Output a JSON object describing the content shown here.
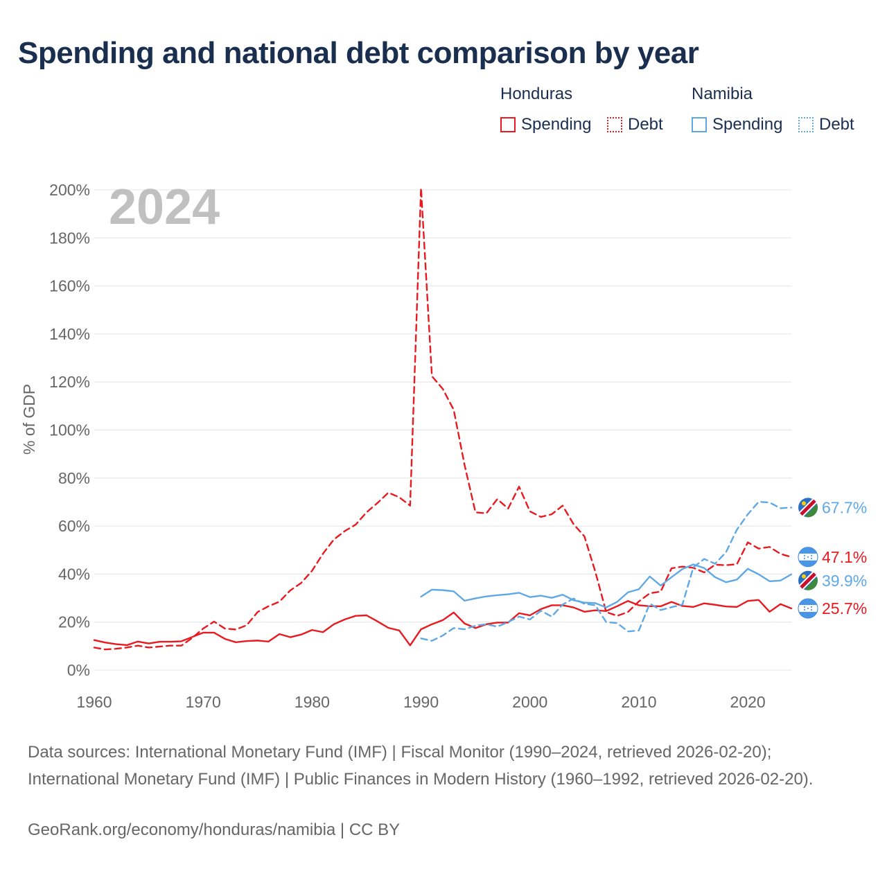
{
  "title": "Spending and national debt comparison by year",
  "legend": {
    "groups": [
      {
        "country": "Honduras",
        "color": "#e8191f",
        "items": [
          {
            "label": "Spending",
            "style": "solid"
          },
          {
            "label": "Debt",
            "style": "dotted"
          }
        ]
      },
      {
        "country": "Namibia",
        "color": "#5fa8e6",
        "items": [
          {
            "label": "Spending",
            "style": "solid"
          },
          {
            "label": "Debt",
            "style": "dotted"
          }
        ]
      }
    ]
  },
  "year_watermark": "2024",
  "source_text": "Data sources: International Monetary Fund (IMF) | Fiscal Monitor (1990–2024, retrieved 2026-02-20); International Monetary Fund (IMF) | Public Finances in Modern History (1960–1992, retrieved 2026-02-20).",
  "credit_text": "GeoRank.org/economy/honduras/namibia | CC BY",
  "chart_data": {
    "type": "line",
    "title": "Spending and national debt comparison by year",
    "xlabel": "",
    "ylabel": "% of GDP",
    "xlim": [
      1960,
      2024
    ],
    "ylim": [
      0,
      200
    ],
    "x_ticks": [
      1960,
      1970,
      1980,
      1990,
      2000,
      2010,
      2020
    ],
    "y_ticks": [
      0,
      20,
      40,
      60,
      80,
      100,
      120,
      140,
      160,
      180,
      200
    ],
    "y_tick_labels": [
      "0%",
      "20%",
      "40%",
      "60%",
      "80%",
      "100%",
      "120%",
      "140%",
      "160%",
      "180%",
      "200%"
    ],
    "grid": true,
    "series": [
      {
        "name": "Honduras Debt",
        "country": "Honduras",
        "measure": "Debt",
        "color": "#e8191f",
        "dash": "dashed",
        "start_year": 1960,
        "end_label": "47.1%",
        "flag": "honduras",
        "values": [
          9.4,
          8.6,
          8.9,
          9.4,
          10.2,
          9.4,
          9.8,
          10.2,
          10.2,
          13.4,
          17.3,
          20.2,
          17.3,
          16.9,
          18.7,
          24.2,
          26.6,
          28.5,
          33.2,
          36.3,
          41.4,
          48.5,
          54.4,
          57.9,
          60.6,
          65.7,
          69.6,
          73.9,
          72.0,
          68.5,
          200.8,
          122.4,
          117.1,
          108.4,
          85.4,
          65.7,
          65.3,
          71.2,
          67.3,
          76.4,
          66.1,
          63.8,
          64.9,
          68.5,
          60.8,
          55.7,
          41.0,
          24.2,
          22.6,
          24.2,
          28.6,
          32.0,
          32.7,
          42.4,
          43.1,
          42.6,
          40.7,
          43.9,
          43.7,
          44.1,
          53.2,
          50.6,
          51.3,
          48.4,
          47.1
        ]
      },
      {
        "name": "Honduras Spending",
        "country": "Honduras",
        "measure": "Spending",
        "color": "#e8191f",
        "dash": "solid",
        "start_year": 1960,
        "end_label": "25.7%",
        "flag": "honduras",
        "values": [
          12.5,
          11.5,
          10.8,
          10.4,
          11.9,
          11.1,
          11.8,
          11.8,
          12.0,
          13.8,
          15.6,
          15.6,
          13.0,
          11.6,
          12.1,
          12.3,
          11.9,
          15.0,
          13.7,
          14.8,
          16.7,
          15.8,
          19.1,
          21.1,
          22.6,
          22.8,
          20.3,
          17.6,
          16.5,
          10.3,
          17.0,
          19.1,
          20.8,
          24.0,
          19.4,
          17.5,
          19.1,
          19.8,
          19.8,
          23.7,
          22.8,
          25.4,
          27.0,
          27.0,
          26.1,
          24.3,
          24.9,
          24.6,
          26.6,
          28.8,
          27.0,
          26.6,
          26.6,
          28.4,
          26.7,
          26.3,
          27.8,
          27.2,
          26.5,
          26.3,
          28.8,
          29.2,
          24.3,
          27.5,
          25.7
        ]
      },
      {
        "name": "Namibia Debt",
        "country": "Namibia",
        "measure": "Debt",
        "color": "#5fa8e6",
        "dash": "dashed",
        "start_year": 1990,
        "end_label": "67.7%",
        "flag": "namibia",
        "values": [
          13.2,
          12.2,
          14.4,
          17.5,
          17.0,
          18.5,
          19.1,
          18.1,
          20.0,
          22.3,
          21.1,
          24.7,
          22.3,
          27.3,
          29.8,
          27.6,
          27.0,
          20.0,
          19.6,
          16.1,
          16.5,
          27.7,
          25.0,
          26.2,
          27.3,
          42.8,
          46.3,
          44.3,
          49.1,
          58.5,
          64.9,
          70.1,
          69.8,
          67.4,
          67.7
        ]
      },
      {
        "name": "Namibia Spending",
        "country": "Namibia",
        "measure": "Spending",
        "color": "#5fa8e6",
        "dash": "solid",
        "start_year": 1990,
        "end_label": "39.9%",
        "flag": "namibia",
        "values": [
          30.6,
          33.5,
          33.3,
          32.8,
          28.9,
          29.9,
          30.7,
          31.2,
          31.6,
          32.2,
          30.4,
          31.0,
          30.1,
          31.4,
          29.1,
          28.1,
          27.9,
          26.1,
          28.4,
          32.4,
          33.7,
          39.0,
          35.2,
          38.7,
          42.1,
          44.0,
          42.5,
          38.7,
          36.6,
          37.7,
          42.2,
          39.9,
          37.0,
          37.3,
          39.9
        ]
      }
    ]
  }
}
